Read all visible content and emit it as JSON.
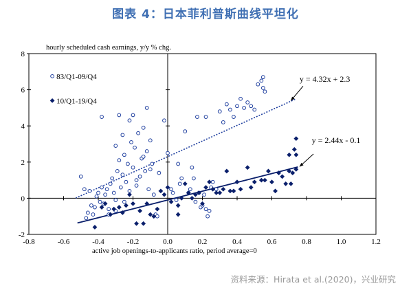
{
  "figure": {
    "title": "图表 4：日本菲利普斯曲线平坦化",
    "source": "资料来源：Hirata et al.(2020)，兴业研究"
  },
  "chart_data": {
    "type": "scatter",
    "ylabel": "hourly scheduled cash earnings, y/y % chg.",
    "xlabel": "active job openings-to-applicants ratio, period average=0",
    "xlim": [
      -0.8,
      1.2
    ],
    "ylim": [
      -2,
      8
    ],
    "x_ticks": [
      "-0.8",
      "-0.6",
      "-0.4",
      "-0.2",
      "0.0",
      "0.2",
      "0.4",
      "0.6",
      "0.8",
      "1.0",
      "1.2"
    ],
    "y_ticks": [
      "-2",
      "0",
      "2",
      "4",
      "6",
      "8"
    ],
    "grid": false,
    "legend_position": "top-left",
    "series": [
      {
        "name": "83/Q1-09/Q4",
        "marker": "open-circle",
        "color": "#1f3f9f",
        "points": [
          [
            -0.47,
            -1.1
          ],
          [
            -0.46,
            -0.8
          ],
          [
            -0.44,
            -0.4
          ],
          [
            -0.43,
            -0.9
          ],
          [
            -0.42,
            -0.5
          ],
          [
            -0.41,
            0.1
          ],
          [
            -0.4,
            0.3
          ],
          [
            -0.39,
            -0.2
          ],
          [
            -0.38,
            0.6
          ],
          [
            -0.37,
            -0.3
          ],
          [
            -0.36,
            0.2
          ],
          [
            -0.35,
            0.5
          ],
          [
            -0.34,
            -0.6
          ],
          [
            -0.33,
            0.8
          ],
          [
            -0.32,
            1.1
          ],
          [
            -0.31,
            0.3
          ],
          [
            -0.3,
            2.9
          ],
          [
            -0.3,
            -0.1
          ],
          [
            -0.29,
            1.5
          ],
          [
            -0.28,
            2.1
          ],
          [
            -0.27,
            0.6
          ],
          [
            -0.26,
            3.5
          ],
          [
            -0.26,
            1.3
          ],
          [
            -0.25,
            2.4
          ],
          [
            -0.24,
            0.9
          ],
          [
            -0.23,
            1.9
          ],
          [
            -0.22,
            4.3
          ],
          [
            -0.22,
            0.4
          ],
          [
            -0.21,
            3.1
          ],
          [
            -0.2,
            1.7
          ],
          [
            -0.19,
            2.8
          ],
          [
            -0.18,
            0.7
          ],
          [
            -0.17,
            3.6
          ],
          [
            -0.16,
            1.2
          ],
          [
            -0.15,
            2.2
          ],
          [
            -0.14,
            3.9
          ],
          [
            -0.13,
            1.5
          ],
          [
            -0.12,
            2.6
          ],
          [
            -0.11,
            0.5
          ],
          [
            -0.1,
            3.2
          ],
          [
            -0.09,
            1.9
          ],
          [
            -0.08,
            0.2
          ],
          [
            -0.07,
            -0.9
          ],
          [
            -0.06,
            -1.0
          ],
          [
            -0.34,
            -0.9
          ],
          [
            -0.38,
            4.5
          ],
          [
            -0.45,
            0.4
          ],
          [
            -0.48,
            0.5
          ],
          [
            -0.5,
            1.2
          ],
          [
            -0.28,
            4.6
          ],
          [
            -0.2,
            4.6
          ],
          [
            -0.14,
            2.3
          ],
          [
            -0.1,
            1.6
          ],
          [
            -0.05,
            1.4
          ],
          [
            -0.02,
            4.3
          ],
          [
            0.0,
            2.5
          ],
          [
            0.02,
            0.5
          ],
          [
            0.03,
            0.3
          ],
          [
            0.05,
            -0.1
          ],
          [
            0.06,
            1.9
          ],
          [
            0.08,
            1.1
          ],
          [
            0.1,
            3.7
          ],
          [
            0.12,
            0.3
          ],
          [
            0.14,
            1.7
          ],
          [
            0.15,
            1.1
          ],
          [
            0.16,
            -0.2
          ],
          [
            0.17,
            4.5
          ],
          [
            0.18,
            0.3
          ],
          [
            0.19,
            -0.5
          ],
          [
            0.2,
            -0.4
          ],
          [
            0.21,
            0.2
          ],
          [
            0.22,
            -0.6
          ],
          [
            0.23,
            -1.0
          ],
          [
            0.24,
            -0.7
          ],
          [
            0.26,
            0.9
          ],
          [
            0.28,
            0.5
          ],
          [
            0.3,
            4.8
          ],
          [
            0.32,
            4.2
          ],
          [
            0.34,
            5.2
          ],
          [
            0.36,
            4.9
          ],
          [
            0.38,
            4.5
          ],
          [
            0.4,
            5.1
          ],
          [
            0.42,
            5.5
          ],
          [
            0.44,
            5.0
          ],
          [
            0.46,
            5.3
          ],
          [
            0.48,
            5.1
          ],
          [
            0.5,
            4.9
          ],
          [
            0.52,
            6.3
          ],
          [
            0.54,
            6.5
          ],
          [
            0.55,
            6.7
          ],
          [
            0.55,
            6.1
          ],
          [
            0.56,
            5.9
          ],
          [
            0.22,
            4.5
          ],
          [
            -0.12,
            5.0
          ],
          [
            0.07,
            0.8
          ],
          [
            -0.25,
            -0.2
          ],
          [
            -0.18,
            1.0
          ],
          [
            0.25,
            0.6
          ],
          [
            -0.3,
            -0.7
          ],
          [
            0.13,
            0.5
          ]
        ]
      },
      {
        "name": "10/Q1-19/Q4",
        "marker": "filled-diamond",
        "color": "#0a1f6b",
        "points": [
          [
            -0.42,
            -1.6
          ],
          [
            -0.38,
            -0.5
          ],
          [
            -0.36,
            -0.3
          ],
          [
            -0.33,
            -0.9
          ],
          [
            -0.31,
            -0.6
          ],
          [
            -0.28,
            -0.5
          ],
          [
            -0.26,
            -0.8
          ],
          [
            -0.24,
            -0.4
          ],
          [
            -0.22,
            0.2
          ],
          [
            -0.2,
            -0.3
          ],
          [
            -0.18,
            -1.4
          ],
          [
            -0.16,
            -0.7
          ],
          [
            -0.14,
            -1.4
          ],
          [
            -0.12,
            -0.3
          ],
          [
            -0.1,
            -0.9
          ],
          [
            -0.06,
            -0.6
          ],
          [
            -0.04,
            0.4
          ],
          [
            -0.02,
            0.2
          ],
          [
            0.0,
            0.6
          ],
          [
            0.02,
            -0.2
          ],
          [
            0.06,
            -0.4
          ],
          [
            0.08,
            0.0
          ],
          [
            0.1,
            0.8
          ],
          [
            0.12,
            0.3
          ],
          [
            0.14,
            0.0
          ],
          [
            0.16,
            0.2
          ],
          [
            0.18,
            0.3
          ],
          [
            0.2,
            -0.3
          ],
          [
            0.22,
            0.6
          ],
          [
            0.24,
            0.9
          ],
          [
            0.26,
            0.5
          ],
          [
            0.28,
            0.3
          ],
          [
            0.3,
            0.3
          ],
          [
            0.32,
            0.5
          ],
          [
            0.34,
            1.5
          ],
          [
            0.36,
            0.4
          ],
          [
            0.38,
            0.4
          ],
          [
            0.4,
            0.9
          ],
          [
            0.42,
            0.5
          ],
          [
            0.46,
            1.7
          ],
          [
            0.48,
            0.6
          ],
          [
            0.5,
            0.9
          ],
          [
            0.54,
            1.0
          ],
          [
            0.56,
            1.0
          ],
          [
            0.58,
            1.5
          ],
          [
            0.6,
            0.9
          ],
          [
            0.62,
            0.4
          ],
          [
            0.64,
            1.4
          ],
          [
            0.66,
            1.2
          ],
          [
            0.68,
            0.8
          ],
          [
            0.7,
            2.4
          ],
          [
            0.71,
            0.8
          ],
          [
            0.72,
            1.4
          ],
          [
            0.73,
            2.7
          ],
          [
            0.74,
            3.3
          ],
          [
            0.74,
            2.4
          ],
          [
            0.74,
            1.6
          ],
          [
            0.7,
            1.5
          ],
          [
            0.06,
            -0.9
          ],
          [
            -0.08,
            -1.0
          ]
        ]
      }
    ],
    "trendlines": [
      {
        "series": "83/Q1-09/Q4",
        "slope": 4.32,
        "intercept": 2.3,
        "x_range": [
          -0.53,
          0.74
        ],
        "style": "dotted",
        "label": "y = 4.32x + 2.3"
      },
      {
        "series": "10/Q1-19/Q4",
        "slope": 2.44,
        "intercept": -0.1,
        "x_range": [
          -0.52,
          0.75
        ],
        "style": "solid",
        "label": "y = 2.44x - 0.1"
      }
    ]
  }
}
